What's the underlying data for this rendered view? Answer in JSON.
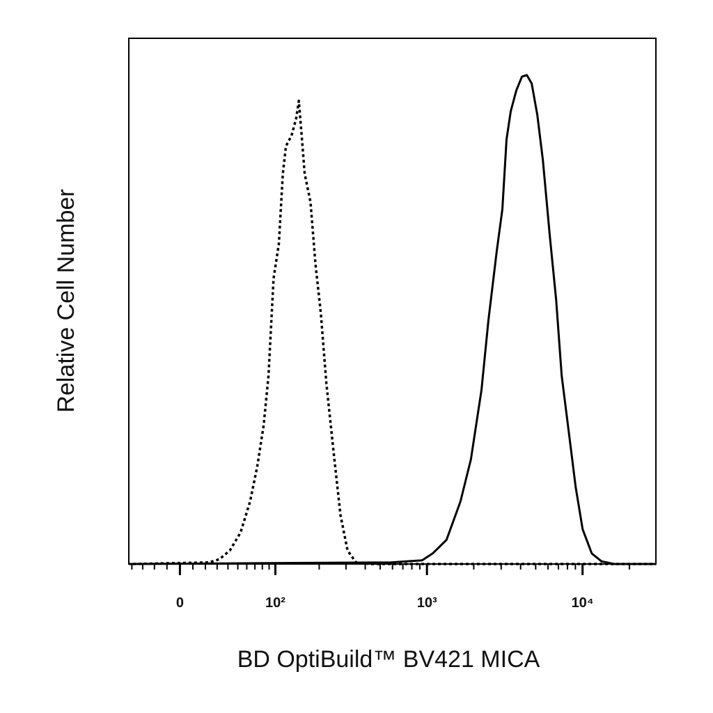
{
  "chart_data": {
    "type": "line",
    "xlabel": "BD OptiBuild™ BV421 MICA",
    "ylabel": "Relative Cell Number",
    "xscale": "biexponential",
    "xlim": [
      -43,
      29600
    ],
    "ylim": [
      0,
      100
    ],
    "xticks": [
      0,
      {
        "value": 100,
        "label": "10²"
      },
      {
        "value": 1000,
        "label": "10³"
      },
      {
        "value": 10000,
        "label": "10⁴"
      }
    ],
    "xminorticks": [
      -40,
      -30,
      -20,
      -10,
      10,
      20,
      30,
      40,
      50,
      60,
      70,
      80,
      90,
      200,
      300,
      400,
      500,
      600,
      700,
      800,
      900,
      2000,
      3000,
      4000,
      5000,
      6000,
      7000,
      8000,
      9000,
      20000
    ],
    "series": [
      {
        "color": "#000000",
        "linestyle": "dotted",
        "x": [
          -39,
          23,
          32,
          42,
          53,
          64,
          73,
          82,
          89,
          97,
          106,
          113,
          119,
          130,
          140,
          146,
          152,
          160,
          175,
          189,
          205,
          223,
          249,
          276,
          307,
          348,
          428,
          29600
        ],
        "values": [
          0,
          0.3,
          0.9,
          2.6,
          6.0,
          11.9,
          18.5,
          26.5,
          35.8,
          54.3,
          60.9,
          74.2,
          79.5,
          81.5,
          84.8,
          88.1,
          82.1,
          74.2,
          68.9,
          57.0,
          47.7,
          34.4,
          21.2,
          9.3,
          2.6,
          0.3,
          0,
          0
        ]
      },
      {
        "color": "#000000",
        "linestyle": "solid",
        "x": [
          -43,
          584,
          931,
          1088,
          1336,
          1643,
          1918,
          2242,
          2486,
          2812,
          3053,
          3250,
          3457,
          3755,
          4079,
          4384,
          4713,
          5120,
          5560,
          6168,
          6767,
          7349,
          8150,
          9038,
          10020,
          11465,
          13243,
          15944,
          29600
        ],
        "values": [
          0,
          0.3,
          0.7,
          2.0,
          4.6,
          11.9,
          19.9,
          33.1,
          46.4,
          59.6,
          67.5,
          80.8,
          86.1,
          90.1,
          92.7,
          93.0,
          91.4,
          85.4,
          76.8,
          62.3,
          50.3,
          35.8,
          25.2,
          14.6,
          6.6,
          2.0,
          0.5,
          0,
          0
        ]
      }
    ]
  }
}
